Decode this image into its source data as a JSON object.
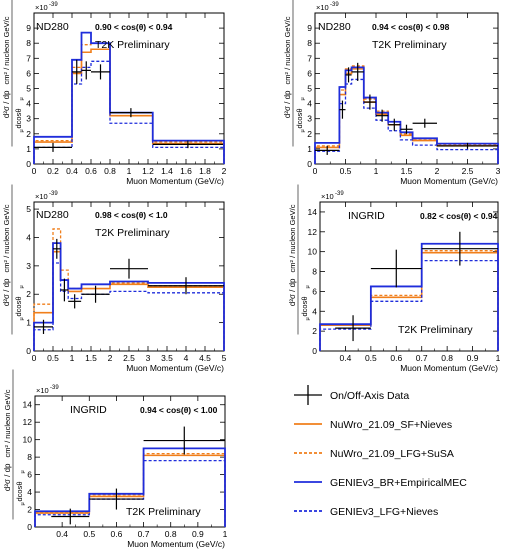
{
  "legend": {
    "entries": [
      {
        "label": "On/Off-Axis Data",
        "kind": "data",
        "color": "#000000",
        "dash": false
      },
      {
        "label": "NuWro_21.09_SF+Nieves",
        "kind": "line",
        "color": "#f07f1b",
        "dash": false
      },
      {
        "label": "NuWro_21.09_LFG+SuSA",
        "kind": "line",
        "color": "#f07f1b",
        "dash": true
      },
      {
        "label": "GENIEv3_BR+EmpiricalMEC",
        "kind": "line",
        "color": "#1f2ddb",
        "dash": false
      },
      {
        "label": "GENIEv3_LFG+Nieves",
        "kind": "line",
        "color": "#1f2ddb",
        "dash": true
      }
    ]
  },
  "colors": {
    "data": "#000000",
    "nuwro": "#f07f1b",
    "genie": "#1f2ddb"
  },
  "chart_data": [
    {
      "type": "histogram",
      "detector": "ND280",
      "angle": "0.90 < cos(θ) < 0.94",
      "preliminary": "T2K Preliminary",
      "exponent": "×10",
      "exponent_power": "-39",
      "ylabel_unit": "cm² / nucleon GeV/c",
      "ylabel_pre": "d²σ / dp",
      "ylabel_sub": "μ",
      "ylabel_post": "dcosθ",
      "ylabel_sub2": "μ",
      "xlabel": "Muon Momentum (GeV/c)",
      "xlim": [
        0,
        2
      ],
      "ylim": [
        0,
        10
      ],
      "xticks": [
        "0",
        "0.2",
        "0.4",
        "0.6",
        "0.8",
        "1",
        "1.2",
        "1.4",
        "1.6",
        "1.8",
        "2"
      ],
      "xtick_values": [
        0,
        0.2,
        0.4,
        0.6,
        0.8,
        1,
        1.2,
        1.4,
        1.6,
        1.8,
        2
      ],
      "yticks": [
        "0",
        "1",
        "2",
        "3",
        "4",
        "5",
        "6",
        "7",
        "8",
        "9"
      ],
      "ytick_values": [
        0,
        1,
        2,
        3,
        4,
        5,
        6,
        7,
        8,
        9
      ],
      "bin_edges": [
        0,
        0.4,
        0.5,
        0.6,
        0.8,
        1.25,
        2.0
      ],
      "series": [
        {
          "name": "NuWro_21.09_SF+Nieves",
          "values": [
            1.45,
            6.0,
            7.4,
            7.6,
            3.2,
            1.35
          ]
        },
        {
          "name": "NuWro_21.09_LFG+SuSA",
          "values": [
            1.55,
            6.4,
            7.9,
            8.0,
            3.4,
            1.45
          ]
        },
        {
          "name": "GENIEv3_BR+EmpiricalMEC",
          "values": [
            1.8,
            6.9,
            8.7,
            8.0,
            3.4,
            1.55
          ]
        },
        {
          "name": "GENIEv3_LFG+Nieves",
          "values": [
            1.1,
            5.3,
            6.4,
            6.8,
            2.7,
            1.1
          ]
        }
      ],
      "data": {
        "x": [
          0.2,
          0.45,
          0.55,
          0.7,
          1.02,
          1.62
        ],
        "xerr": [
          0.2,
          0.05,
          0.05,
          0.1,
          0.22,
          0.37
        ],
        "y": [
          1.1,
          6.1,
          6.2,
          6.1,
          3.4,
          1.3
        ],
        "yerr": [
          0.3,
          0.8,
          0.6,
          0.5,
          0.3,
          0.25
        ]
      }
    },
    {
      "type": "histogram",
      "detector": "ND280",
      "angle": "0.94 < cos(θ) < 0.98",
      "preliminary": "T2K Preliminary",
      "exponent": "×10",
      "exponent_power": "-39",
      "ylabel_unit": "cm² / nucleon GeV/c",
      "ylabel_pre": "d²σ / dp",
      "ylabel_sub": "μ",
      "ylabel_post": "dcosθ",
      "ylabel_sub2": "μ",
      "xlabel": "Muon Momentum (GeV/c)",
      "xlim": [
        0,
        3
      ],
      "ylim": [
        0,
        10
      ],
      "xticks": [
        "0",
        "0.5",
        "1",
        "1.5",
        "2",
        "2.5",
        "3"
      ],
      "xtick_values": [
        0,
        0.5,
        1,
        1.5,
        2,
        2.5,
        3
      ],
      "yticks": [
        "0",
        "1",
        "2",
        "3",
        "4",
        "5",
        "6",
        "7",
        "8",
        "9"
      ],
      "ytick_values": [
        0,
        1,
        2,
        3,
        4,
        5,
        6,
        7,
        8,
        9
      ],
      "bin_edges": [
        0,
        0.4,
        0.5,
        0.6,
        0.8,
        1.0,
        1.2,
        1.4,
        1.6,
        2.0,
        3.0
      ],
      "series": [
        {
          "name": "NuWro_21.09_SF+Nieves",
          "values": [
            1.1,
            4.6,
            6.0,
            6.3,
            4.1,
            3.3,
            2.6,
            1.9,
            1.55,
            1.2
          ]
        },
        {
          "name": "NuWro_21.09_LFG+SuSA",
          "values": [
            1.2,
            4.9,
            6.3,
            6.5,
            4.3,
            3.5,
            2.8,
            2.0,
            1.65,
            1.3
          ]
        },
        {
          "name": "GENIEv3_BR+EmpiricalMEC",
          "values": [
            1.4,
            5.1,
            6.2,
            6.4,
            4.4,
            3.4,
            2.8,
            2.1,
            1.7,
            1.35
          ]
        },
        {
          "name": "GENIEv3_LFG+Nieves",
          "values": [
            0.85,
            4.0,
            5.3,
            5.6,
            3.7,
            2.9,
            2.2,
            1.6,
            1.25,
            0.95
          ]
        }
      ],
      "data": {
        "x": [
          0.2,
          0.45,
          0.55,
          0.7,
          0.9,
          1.1,
          1.3,
          1.5,
          1.8,
          2.5
        ],
        "xerr": [
          0.2,
          0.05,
          0.05,
          0.1,
          0.1,
          0.1,
          0.1,
          0.1,
          0.2,
          0.5
        ],
        "y": [
          0.9,
          3.6,
          5.9,
          6.1,
          4.1,
          3.2,
          2.6,
          2.3,
          2.7,
          1.2
        ],
        "yerr": [
          0.3,
          0.6,
          0.5,
          0.6,
          0.5,
          0.4,
          0.4,
          0.3,
          0.3,
          0.2
        ]
      }
    },
    {
      "type": "histogram",
      "detector": "ND280",
      "angle": "0.98 < cos(θ) < 1.0",
      "preliminary": "T2K Preliminary",
      "exponent": "×10",
      "exponent_power": "-39",
      "ylabel_unit": "cm² / nucleon GeV/c",
      "ylabel_pre": "d²σ / dp",
      "ylabel_sub": "μ",
      "ylabel_post": "dcosθ",
      "ylabel_sub2": "μ",
      "xlabel": "Muon Momentum (GeV/c)",
      "xlim": [
        0,
        5
      ],
      "ylim": [
        0,
        5.25
      ],
      "xticks": [
        "0",
        "0.5",
        "1",
        "1.5",
        "2",
        "2.5",
        "3",
        "3.5",
        "4",
        "4.5",
        "5"
      ],
      "xtick_values": [
        0,
        0.5,
        1,
        1.5,
        2,
        2.5,
        3,
        3.5,
        4,
        4.5,
        5
      ],
      "yticks": [
        "0",
        "1",
        "2",
        "3",
        "4",
        "5"
      ],
      "ytick_values": [
        0,
        1,
        2,
        3,
        4,
        5
      ],
      "bin_edges": [
        0,
        0.5,
        0.7,
        0.9,
        1.25,
        2.0,
        3.0,
        5.0
      ],
      "series": [
        {
          "name": "NuWro_21.09_SF+Nieves",
          "values": [
            1.35,
            3.5,
            2.5,
            2.1,
            2.2,
            2.35,
            2.25
          ]
        },
        {
          "name": "NuWro_21.09_LFG+SuSA",
          "values": [
            1.65,
            4.3,
            2.85,
            2.2,
            2.35,
            2.4,
            2.3
          ]
        },
        {
          "name": "GENIEv3_BR+EmpiricalMEC",
          "values": [
            1.0,
            3.8,
            2.5,
            2.2,
            2.35,
            2.45,
            2.4
          ]
        },
        {
          "name": "GENIEv3_LFG+Nieves",
          "values": [
            0.75,
            3.1,
            2.1,
            1.85,
            2.0,
            2.1,
            2.05
          ]
        }
      ],
      "data": {
        "x": [
          0.25,
          0.6,
          0.8,
          1.07,
          1.62,
          2.5,
          4.0
        ],
        "xerr": [
          0.25,
          0.1,
          0.1,
          0.17,
          0.37,
          0.5,
          1.0
        ],
        "y": [
          0.85,
          3.6,
          2.15,
          1.75,
          2.0,
          2.9,
          2.3
        ],
        "yerr": [
          0.25,
          0.35,
          0.4,
          0.25,
          0.3,
          0.35,
          0.3
        ]
      }
    },
    {
      "type": "histogram",
      "detector": "INGRID",
      "angle": "0.82 < cos(θ) < 0.94",
      "preliminary": "T2K Preliminary",
      "exponent": "×10",
      "exponent_power": "-39",
      "ylabel_unit": "cm² / nucleon GeV/c",
      "ylabel_pre": "d²σ / dp",
      "ylabel_sub": "μ",
      "ylabel_post": "dcosθ",
      "ylabel_sub2": "μ",
      "xlabel": "Muon Momentum (GeV/c)",
      "xlim": [
        0.3,
        1.0
      ],
      "ylim": [
        0,
        15
      ],
      "xticks": [
        "0.4",
        "0.5",
        "0.6",
        "0.7",
        "0.8",
        "0.9",
        "1"
      ],
      "xtick_values": [
        0.4,
        0.5,
        0.6,
        0.7,
        0.8,
        0.9,
        1.0
      ],
      "yticks": [
        "0",
        "2",
        "4",
        "6",
        "8",
        "10",
        "12",
        "14"
      ],
      "ytick_values": [
        0,
        2,
        4,
        6,
        8,
        10,
        12,
        14
      ],
      "bin_edges": [
        0.3,
        0.5,
        0.7,
        1.0
      ],
      "series": [
        {
          "name": "NuWro_21.09_SF+Nieves",
          "values": [
            2.6,
            5.4,
            9.9
          ]
        },
        {
          "name": "NuWro_21.09_LFG+SuSA",
          "values": [
            2.7,
            5.6,
            10.1
          ]
        },
        {
          "name": "GENIEv3_BR+EmpiricalMEC",
          "values": [
            2.7,
            6.5,
            10.8
          ]
        },
        {
          "name": "GENIEv3_LFG+Nieves",
          "values": [
            2.2,
            5.0,
            9.1
          ]
        }
      ],
      "data": {
        "x": [
          0.43,
          0.6,
          0.85
        ],
        "xerr": [
          0.07,
          0.1,
          0.15
        ],
        "y": [
          2.3,
          8.3,
          10.3
        ],
        "yerr": [
          1.3,
          1.9,
          1.7
        ]
      }
    },
    {
      "type": "histogram",
      "detector": "INGRID",
      "angle": "0.94 < cos(θ) < 1.00",
      "preliminary": "T2K Preliminary",
      "exponent": "×10",
      "exponent_power": "-39",
      "ylabel_unit": "cm² / nucleon GeV/c",
      "ylabel_pre": "d²σ / dp",
      "ylabel_sub": "μ",
      "ylabel_post": "dcosθ",
      "ylabel_sub2": "μ",
      "xlabel": "Muon Momentum (GeV/c)",
      "xlim": [
        0.3,
        1.0
      ],
      "ylim": [
        0,
        15
      ],
      "xticks": [
        "0.4",
        "0.5",
        "0.6",
        "0.7",
        "0.8",
        "0.9",
        "1"
      ],
      "xtick_values": [
        0.4,
        0.5,
        0.6,
        0.7,
        0.8,
        0.9,
        1.0
      ],
      "yticks": [
        "0",
        "2",
        "4",
        "6",
        "8",
        "10",
        "12",
        "14"
      ],
      "ytick_values": [
        0,
        2,
        4,
        6,
        8,
        10,
        12,
        14
      ],
      "bin_edges": [
        0.3,
        0.5,
        0.7,
        1.0
      ],
      "series": [
        {
          "name": "NuWro_21.09_SF+Nieves",
          "values": [
            1.6,
            3.5,
            8.2
          ]
        },
        {
          "name": "NuWro_21.09_LFG+SuSA",
          "values": [
            1.7,
            3.7,
            8.4
          ]
        },
        {
          "name": "GENIEv3_BR+EmpiricalMEC",
          "values": [
            1.8,
            3.8,
            9.0
          ]
        },
        {
          "name": "GENIEv3_LFG+Nieves",
          "values": [
            1.4,
            3.2,
            7.6
          ]
        }
      ],
      "data": {
        "x": [
          0.43,
          0.6,
          0.85
        ],
        "xerr": [
          0.07,
          0.1,
          0.15
        ],
        "y": [
          1.2,
          3.2,
          9.9
        ],
        "yerr": [
          0.9,
          1.2,
          1.6
        ]
      }
    }
  ]
}
